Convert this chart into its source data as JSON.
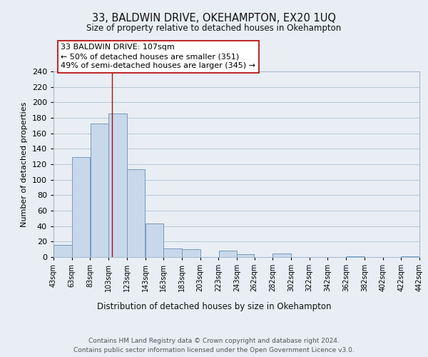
{
  "title": "33, BALDWIN DRIVE, OKEHAMPTON, EX20 1UQ",
  "subtitle": "Size of property relative to detached houses in Okehampton",
  "xlabel": "Distribution of detached houses by size in Okehampton",
  "ylabel": "Number of detached properties",
  "bar_edges": [
    43,
    63,
    83,
    103,
    123,
    143,
    163,
    183,
    203,
    223,
    243,
    262,
    282,
    302,
    322,
    342,
    362,
    382,
    402,
    422,
    442
  ],
  "bar_heights": [
    16,
    129,
    173,
    186,
    114,
    43,
    11,
    10,
    0,
    8,
    4,
    0,
    5,
    0,
    0,
    0,
    1,
    0,
    0,
    1
  ],
  "bar_color": "#c8d8ea",
  "bar_edge_color": "#7799bb",
  "reference_line_x": 107,
  "reference_line_color": "#aa1111",
  "ylim": [
    0,
    240
  ],
  "yticks": [
    0,
    20,
    40,
    60,
    80,
    100,
    120,
    140,
    160,
    180,
    200,
    220,
    240
  ],
  "annotation_line1": "33 BALDWIN DRIVE: 107sqm",
  "annotation_line2": "← 50% of detached houses are smaller (351)",
  "annotation_line3": "49% of semi-detached houses are larger (345) →",
  "annotation_box_color": "#ffffff",
  "annotation_box_edgecolor": "#bb1111",
  "footer_text": "Contains HM Land Registry data © Crown copyright and database right 2024.\nContains public sector information licensed under the Open Government Licence v3.0.",
  "background_color": "#e8eef4",
  "plot_background_color": "#e8eef4",
  "grid_color": "#b8c8d8",
  "tick_labels": [
    "43sqm",
    "63sqm",
    "83sqm",
    "103sqm",
    "123sqm",
    "143sqm",
    "163sqm",
    "183sqm",
    "203sqm",
    "223sqm",
    "243sqm",
    "262sqm",
    "282sqm",
    "302sqm",
    "322sqm",
    "342sqm",
    "362sqm",
    "382sqm",
    "402sqm",
    "422sqm",
    "442sqm"
  ]
}
